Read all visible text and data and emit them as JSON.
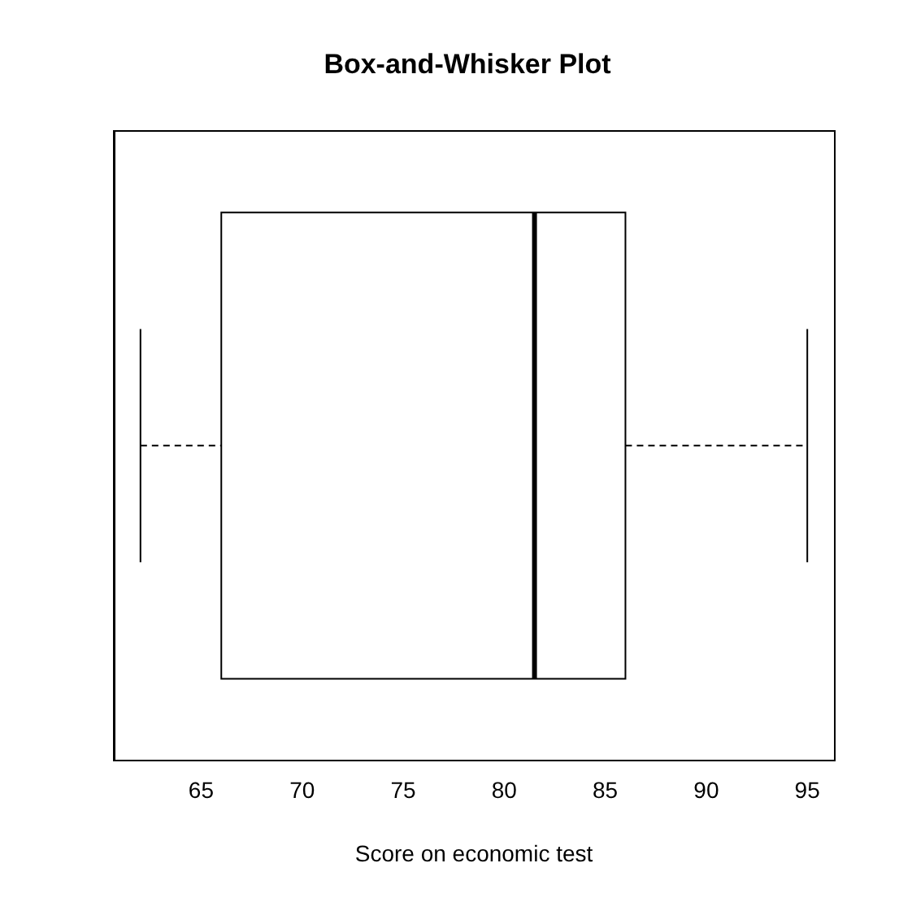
{
  "chart_data": {
    "type": "box",
    "title": "Box-and-Whisker Plot",
    "xlabel": "Score on economic test",
    "orientation": "horizontal",
    "categories": [
      null
    ],
    "boxes": [
      {
        "low": 62,
        "q1": 66,
        "median": 81.5,
        "q3": 86,
        "high": 95
      }
    ],
    "xlim": [
      60.68,
      96.32
    ],
    "xticks": [
      65,
      70,
      75,
      80,
      85,
      90,
      95
    ],
    "tick_labels": "x",
    "grid": false,
    "legend": false
  }
}
